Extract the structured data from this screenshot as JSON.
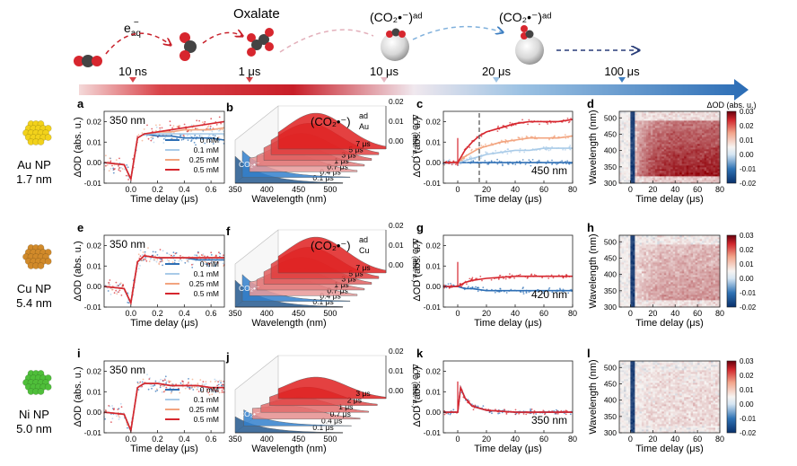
{
  "scheme": {
    "species": [
      "e_aq",
      "Oxalate",
      "(CO2•−)ad",
      "(CO2•−)ad"
    ],
    "electron_label": "e",
    "electron_sub": "aq",
    "electron_sup": "−",
    "oxalate_label": "Oxalate",
    "radical_label": "(CO₂•⁻)ᵃᵈ",
    "times": [
      "10 ns",
      "1 μs",
      "10 μs",
      "20 μs",
      "100 μs"
    ],
    "colors": {
      "red": "#c8202a",
      "blue": "#2e6fb5",
      "light_blue": "#8ab8de",
      "navy": "#283c78"
    }
  },
  "rows": [
    {
      "metal": "Au NP",
      "size": "1.7 nm",
      "color": "#f2d21b"
    },
    {
      "metal": "Cu NP",
      "size": "5.4 nm",
      "color": "#d18a2a"
    },
    {
      "metal": "Ni NP",
      "size": "5.0 nm",
      "color": "#4fbf3a"
    }
  ],
  "panel_letters": [
    "a",
    "b",
    "c",
    "d",
    "e",
    "f",
    "g",
    "h",
    "i",
    "j",
    "k",
    "l"
  ],
  "kinetic_panels": {
    "xlabel": "Time delay (μs)",
    "ylabel": "ΔOD (abs. u.)",
    "xticks": [
      "0.0",
      "0.2",
      "0.4",
      "0.6"
    ],
    "yticks": [
      "-0.01",
      "0.00",
      "0.01",
      "0.02"
    ],
    "probe": "350 nm",
    "legend": [
      "0 mM",
      "0.1 mM",
      "0.25 mM",
      "0.5 mM"
    ]
  },
  "spectra_panels": {
    "xlabel": "Wavelength (nm)",
    "xticks": [
      "350",
      "400",
      "450",
      "500"
    ],
    "zlabel": "ΔOD (abs. u.)",
    "zticks": [
      "0.00",
      "0.01",
      "0.02"
    ],
    "co2_label": "CO₂•⁻",
    "au_label_main": "(CO₂•⁻)",
    "au_label_sub": "Au",
    "cu_label_main": "(CO₂•⁻)",
    "cu_label_sub": "Cu",
    "ad": "ad",
    "delays_au": [
      "0.1 μs",
      "0.4 μs",
      "0.7 μs",
      "1 μs",
      "3 μs",
      "5 μs",
      "7 μs"
    ],
    "delays_cu": [
      "0.1 μs",
      "0.4 μs",
      "0.7 μs",
      "1 μs",
      "3 μs",
      "5 μs",
      "7 μs"
    ],
    "delays_ni": [
      "0.1 μs",
      "0.4 μs",
      "0.7 μs",
      "1 μs",
      "2 μs",
      "3 μs"
    ]
  },
  "long_panels": {
    "xlabel": "Time delay (μs)",
    "ylabel": "ΔOD (abs. u.)",
    "xticks": [
      "0",
      "20",
      "40",
      "60",
      "80"
    ],
    "yticks": [
      "-0.01",
      "0.00",
      "0.01",
      "0.02"
    ],
    "probes": [
      "450 nm",
      "420 nm",
      "350 nm"
    ]
  },
  "maps": {
    "xlabel": "Time delay (μs)",
    "ylabel": "Wavelength (nm)",
    "xticks": [
      "0",
      "20",
      "40",
      "60",
      "80"
    ],
    "yticks": [
      "300",
      "350",
      "400",
      "450",
      "500"
    ],
    "cbar_title": "ΔOD (abs. u.)",
    "cbar_ticks": [
      "0.03",
      "0.02",
      "0.01",
      "0.00",
      "-0.01",
      "-0.02"
    ]
  },
  "chart_data": [
    {
      "type": "line",
      "panel": "a",
      "title": "350 nm",
      "xlabel": "Time delay (μs)",
      "ylabel": "ΔOD (abs. u.)",
      "xlim": [
        -0.2,
        0.7
      ],
      "ylim": [
        -0.01,
        0.025
      ],
      "x": [
        -0.2,
        -0.05,
        0.0,
        0.05,
        0.1,
        0.2,
        0.3,
        0.4,
        0.5,
        0.6,
        0.7
      ],
      "series": [
        {
          "name": "0 mM",
          "values": [
            0.0,
            -0.001,
            -0.008,
            0.012,
            0.014,
            0.013,
            0.013,
            0.012,
            0.012,
            0.012,
            0.011
          ]
        },
        {
          "name": "0.1 mM",
          "values": [
            0.0,
            -0.001,
            -0.008,
            0.012,
            0.014,
            0.014,
            0.014,
            0.014,
            0.014,
            0.014,
            0.014
          ]
        },
        {
          "name": "0.25 mM",
          "values": [
            0.0,
            -0.001,
            -0.008,
            0.012,
            0.014,
            0.015,
            0.015,
            0.016,
            0.016,
            0.016,
            0.017
          ]
        },
        {
          "name": "0.5 mM",
          "values": [
            0.0,
            -0.001,
            -0.008,
            0.012,
            0.014,
            0.015,
            0.016,
            0.017,
            0.018,
            0.019,
            0.02
          ]
        }
      ]
    },
    {
      "type": "line",
      "panel": "e",
      "title": "350 nm",
      "xlabel": "Time delay (μs)",
      "ylabel": "ΔOD (abs. u.)",
      "xlim": [
        -0.2,
        0.7
      ],
      "ylim": [
        -0.01,
        0.025
      ],
      "x": [
        -0.2,
        -0.05,
        0.0,
        0.05,
        0.1,
        0.2,
        0.3,
        0.4,
        0.5,
        0.6,
        0.7
      ],
      "series": [
        {
          "name": "0 mM",
          "values": [
            0.0,
            -0.001,
            -0.008,
            0.012,
            0.015,
            0.014,
            0.014,
            0.014,
            0.013,
            0.013,
            0.013
          ]
        },
        {
          "name": "0.1 mM",
          "values": [
            0.0,
            -0.001,
            -0.008,
            0.012,
            0.015,
            0.014,
            0.014,
            0.014,
            0.014,
            0.014,
            0.014
          ]
        },
        {
          "name": "0.25 mM",
          "values": [
            0.0,
            -0.001,
            -0.008,
            0.012,
            0.015,
            0.014,
            0.014,
            0.014,
            0.014,
            0.014,
            0.014
          ]
        },
        {
          "name": "0.5 mM",
          "values": [
            0.0,
            -0.001,
            -0.008,
            0.012,
            0.015,
            0.014,
            0.014,
            0.014,
            0.014,
            0.014,
            0.014
          ]
        }
      ]
    },
    {
      "type": "line",
      "panel": "i",
      "title": "350 nm",
      "xlabel": "Time delay (μs)",
      "ylabel": "ΔOD (abs. u.)",
      "xlim": [
        -0.2,
        0.7
      ],
      "ylim": [
        -0.01,
        0.025
      ],
      "x": [
        -0.2,
        -0.05,
        0.0,
        0.05,
        0.1,
        0.2,
        0.3,
        0.4,
        0.5,
        0.6,
        0.7
      ],
      "series": [
        {
          "name": "0 mM",
          "values": [
            0.0,
            -0.001,
            -0.009,
            0.012,
            0.014,
            0.014,
            0.013,
            0.013,
            0.013,
            0.012,
            0.012
          ]
        },
        {
          "name": "0.1 mM",
          "values": [
            0.0,
            -0.001,
            -0.009,
            0.012,
            0.014,
            0.014,
            0.013,
            0.013,
            0.013,
            0.012,
            0.012
          ]
        },
        {
          "name": "0.25 mM",
          "values": [
            0.0,
            -0.001,
            -0.009,
            0.012,
            0.014,
            0.014,
            0.013,
            0.013,
            0.013,
            0.012,
            0.012
          ]
        },
        {
          "name": "0.5 mM",
          "values": [
            0.0,
            -0.001,
            -0.009,
            0.012,
            0.014,
            0.014,
            0.013,
            0.013,
            0.013,
            0.012,
            0.012
          ]
        }
      ]
    },
    {
      "type": "line",
      "panel": "c",
      "title": "450 nm",
      "xlim": [
        -10,
        80
      ],
      "ylim": [
        -0.01,
        0.025
      ],
      "x": [
        -10,
        0,
        5,
        10,
        15,
        20,
        30,
        40,
        50,
        60,
        70,
        80
      ],
      "series": [
        {
          "name": "0 mM",
          "values": [
            0.0,
            0.0,
            0.0,
            0.0,
            0.0,
            0.0,
            0.0,
            0.0,
            0.0,
            0.0,
            0.0,
            0.0
          ]
        },
        {
          "name": "0.1 mM",
          "values": [
            0.0,
            0.0,
            0.001,
            0.002,
            0.003,
            0.004,
            0.005,
            0.006,
            0.006,
            0.007,
            0.007,
            0.007
          ]
        },
        {
          "name": "0.25 mM",
          "values": [
            0.0,
            0.0,
            0.003,
            0.005,
            0.007,
            0.008,
            0.01,
            0.011,
            0.012,
            0.012,
            0.012,
            0.013
          ]
        },
        {
          "name": "0.5 mM",
          "values": [
            0.0,
            0.0,
            0.006,
            0.01,
            0.013,
            0.015,
            0.017,
            0.019,
            0.02,
            0.02,
            0.02,
            0.021
          ]
        }
      ]
    },
    {
      "type": "line",
      "panel": "g",
      "title": "420 nm",
      "xlim": [
        -10,
        80
      ],
      "ylim": [
        -0.01,
        0.025
      ],
      "x": [
        -10,
        0,
        5,
        10,
        20,
        40,
        60,
        80
      ],
      "series": [
        {
          "name": "0 mM",
          "values": [
            0.0,
            0.0,
            -0.001,
            -0.001,
            -0.002,
            -0.002,
            -0.002,
            -0.002
          ]
        },
        {
          "name": "0.5 mM",
          "values": [
            0.0,
            0.0,
            0.002,
            0.003,
            0.004,
            0.005,
            0.005,
            0.005
          ]
        }
      ]
    },
    {
      "type": "line",
      "panel": "k",
      "title": "350 nm",
      "xlim": [
        -10,
        80
      ],
      "ylim": [
        -0.01,
        0.025
      ],
      "x": [
        -10,
        0,
        2,
        5,
        10,
        20,
        40,
        60,
        80
      ],
      "series": [
        {
          "name": "0 mM",
          "values": [
            0.0,
            0.0,
            0.012,
            0.007,
            0.003,
            0.001,
            0.0,
            0.0,
            0.0
          ]
        },
        {
          "name": "0.5 mM",
          "values": [
            0.0,
            0.0,
            0.012,
            0.007,
            0.003,
            0.001,
            0.0,
            0.0,
            0.0
          ]
        }
      ]
    },
    {
      "type": "heatmap",
      "panel": "d",
      "xlim": [
        -10,
        80
      ],
      "ylim": [
        300,
        520
      ],
      "zlim": [
        -0.02,
        0.03
      ],
      "title": "ΔOD (abs. u.)"
    },
    {
      "type": "heatmap",
      "panel": "h",
      "xlim": [
        -10,
        80
      ],
      "ylim": [
        300,
        520
      ],
      "zlim": [
        -0.02,
        0.03
      ]
    },
    {
      "type": "heatmap",
      "panel": "l",
      "xlim": [
        -10,
        80
      ],
      "ylim": [
        300,
        520
      ],
      "zlim": [
        -0.02,
        0.03
      ]
    }
  ]
}
